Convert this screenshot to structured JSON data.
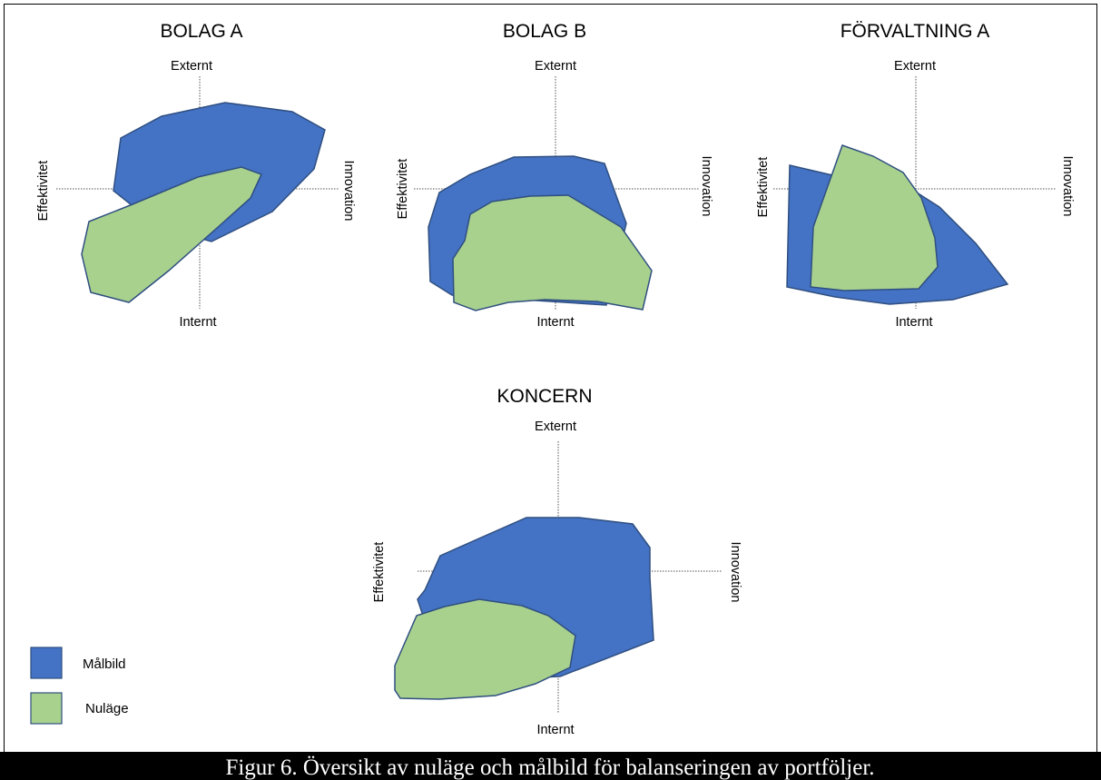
{
  "colors": {
    "malbild": "#4472c4",
    "nulage": "#a9d18e",
    "outline": "#2f4f80",
    "caption_bg": "#000000",
    "caption_text": "#ffffff"
  },
  "axes": {
    "top": "Externt",
    "bottom": "Internt",
    "left": "Effektivitet",
    "right": "Innovation"
  },
  "legend": {
    "items": [
      {
        "label": "Målbild",
        "color": "#4472c4"
      },
      {
        "label": "Nuläge",
        "color": "#a9d18e"
      }
    ]
  },
  "panels": [
    {
      "title": "BOLAG A"
    },
    {
      "title": "BOLAG B"
    },
    {
      "title": "FÖRVALTNING A"
    },
    {
      "title": "KONCERN"
    }
  ],
  "caption": "Figur 6. Översikt av nuläge och målbild för balanseringen av portföljer."
}
